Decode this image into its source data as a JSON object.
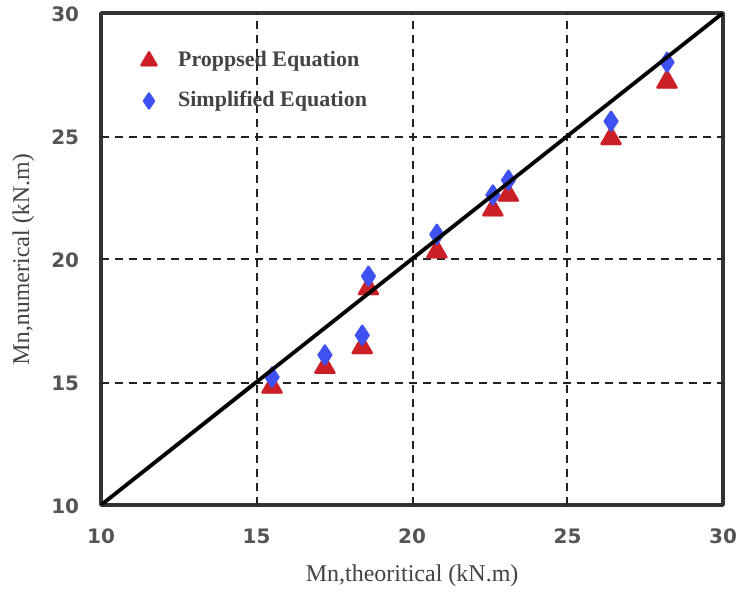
{
  "chart_data": {
    "type": "scatter",
    "xlabel": "Mn,theoritical (kN.m)",
    "ylabel": "Mn,numerical (kN.m)",
    "xlim": [
      10,
      30
    ],
    "ylim": [
      10,
      30
    ],
    "xticks": [
      10,
      15,
      20,
      25,
      30
    ],
    "yticks": [
      10,
      15,
      20,
      25,
      30
    ],
    "grid": true,
    "legend": "top left",
    "series": [
      {
        "name": "Proppsed Equation",
        "color": "#cc1f26",
        "marker": "triangle",
        "x": [
          15.5,
          17.2,
          18.4,
          18.6,
          20.8,
          22.6,
          23.1,
          26.4,
          28.2
        ],
        "values": [
          14.8,
          15.6,
          16.4,
          18.8,
          20.3,
          22.0,
          22.6,
          24.9,
          27.2
        ]
      },
      {
        "name": "Simplified Equation",
        "color": "#3f51f0",
        "marker": "diamond",
        "x": [
          15.5,
          17.2,
          18.4,
          18.6,
          20.8,
          22.6,
          23.1,
          26.4,
          28.2
        ],
        "values": [
          15.2,
          16.1,
          16.9,
          19.3,
          21.0,
          22.6,
          23.2,
          25.6,
          28.0
        ]
      },
      {
        "type": "line",
        "color": "#000000",
        "x": [
          10,
          30
        ],
        "values": [
          10,
          30
        ]
      }
    ]
  }
}
